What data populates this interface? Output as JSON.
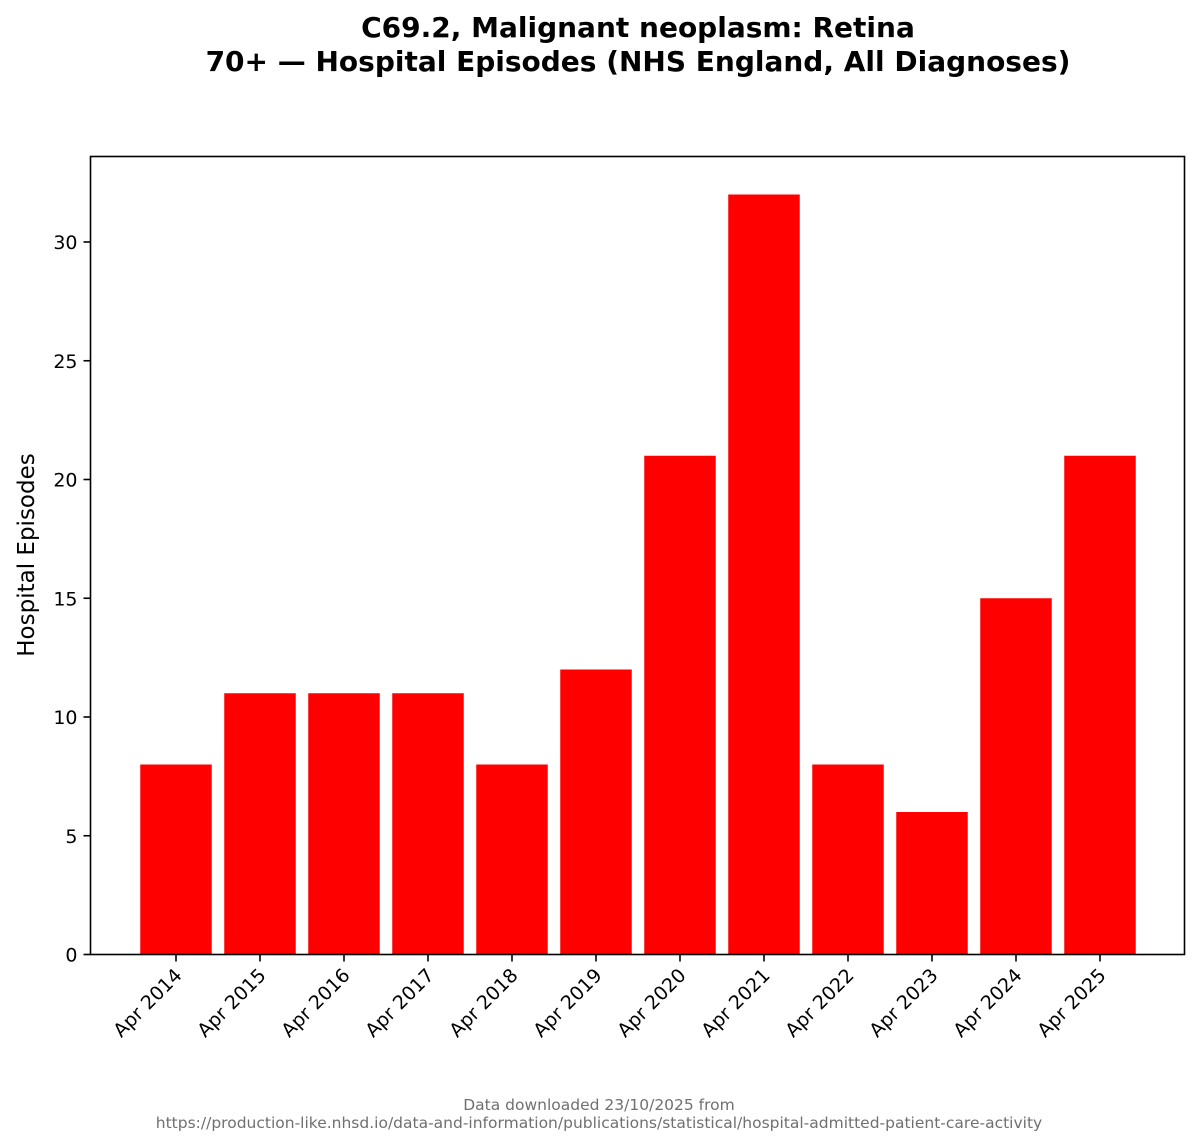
{
  "chart_data": {
    "type": "bar",
    "title_line1": "C69.2, Malignant neoplasm: Retina",
    "title_line2": "70+ — Hospital Episodes (NHS England, All Diagnoses)",
    "xlabel": "",
    "ylabel": "Hospital Episodes",
    "categories": [
      "Apr 2014",
      "Apr 2015",
      "Apr 2016",
      "Apr 2017",
      "Apr 2018",
      "Apr 2019",
      "Apr 2020",
      "Apr 2021",
      "Apr 2022",
      "Apr 2023",
      "Apr 2024",
      "Apr 2025"
    ],
    "values": [
      8,
      11,
      11,
      11,
      8,
      12,
      21,
      32,
      8,
      6,
      15,
      21
    ],
    "ylim": [
      0,
      33.6
    ],
    "yticks": [
      0,
      5,
      10,
      15,
      20,
      25,
      30
    ],
    "bar_color": "#ff0000",
    "grid": false,
    "legend": "none"
  },
  "footnote": {
    "line1": "Data downloaded 23/10/2025 from",
    "line2": "https://production-like.nhsd.io/data-and-information/publications/statistical/hospital-admitted-patient-care-activity"
  }
}
